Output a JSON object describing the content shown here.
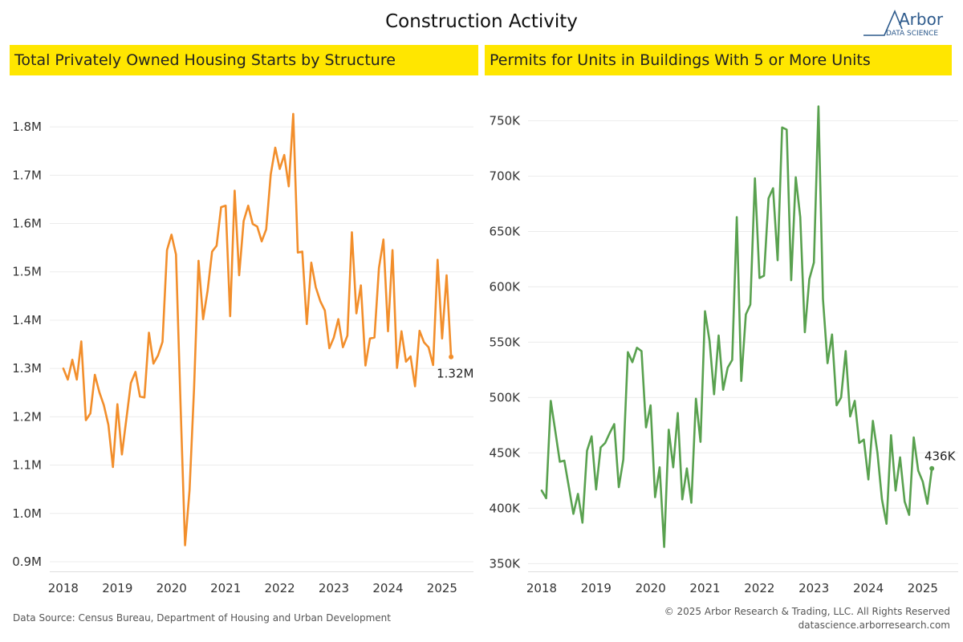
{
  "page": {
    "title": "Construction Activity",
    "source": "Data Source: Census Bureau, Department of Housing and Urban Development",
    "copyright": "© 2025 Arbor Research & Trading, LLC. All Rights Reserved",
    "website": "datascience.arborresearch.com"
  },
  "logo": {
    "name": "Arbor",
    "subtitle": "DATA SCIENCE",
    "color": "#2d5a8c"
  },
  "chart_data": [
    {
      "type": "line",
      "title": "Total Privately Owned Housing Starts by Structure",
      "xlabel": "",
      "ylabel": "",
      "color": "#f28e2b",
      "x_ticks": [
        2018,
        2019,
        2020,
        2021,
        2022,
        2023,
        2024,
        2025
      ],
      "xlim": [
        2017.75,
        2025.58
      ],
      "y_ticks": [
        900000,
        1000000,
        1100000,
        1200000,
        1300000,
        1400000,
        1500000,
        1600000,
        1700000,
        1800000
      ],
      "y_tick_labels": [
        "0.9M",
        "1.0M",
        "1.1M",
        "1.2M",
        "1.3M",
        "1.4M",
        "1.5M",
        "1.6M",
        "1.7M",
        "1.8M"
      ],
      "ylim": [
        880000,
        1870000
      ],
      "grid": "horizontal",
      "end_label": "1.32M",
      "start": "2018-01",
      "frequency": "monthly",
      "values": [
        1300000,
        1277000,
        1318000,
        1277000,
        1356000,
        1193000,
        1207000,
        1287000,
        1251000,
        1224000,
        1183000,
        1096000,
        1226000,
        1122000,
        1196000,
        1270000,
        1293000,
        1242000,
        1240000,
        1374000,
        1310000,
        1327000,
        1355000,
        1545000,
        1577000,
        1536000,
        1224000,
        934000,
        1048000,
        1258000,
        1523000,
        1402000,
        1461000,
        1542000,
        1554000,
        1634000,
        1637000,
        1408000,
        1668000,
        1493000,
        1605000,
        1637000,
        1599000,
        1594000,
        1563000,
        1588000,
        1702000,
        1757000,
        1713000,
        1742000,
        1677000,
        1827000,
        1540000,
        1542000,
        1392000,
        1519000,
        1468000,
        1439000,
        1420000,
        1342000,
        1364000,
        1402000,
        1344000,
        1368000,
        1582000,
        1414000,
        1472000,
        1306000,
        1362000,
        1364000,
        1508000,
        1567000,
        1377000,
        1545000,
        1301000,
        1377000,
        1314000,
        1325000,
        1263000,
        1378000,
        1354000,
        1344000,
        1307000,
        1525000,
        1362000,
        1493000,
        1324000
      ]
    },
    {
      "type": "line",
      "title": "Permits for Units in Buildings With 5 or More Units",
      "xlabel": "",
      "ylabel": "",
      "color": "#59a14f",
      "x_ticks": [
        2018,
        2019,
        2020,
        2021,
        2022,
        2023,
        2024,
        2025
      ],
      "xlim": [
        2017.75,
        2025.65
      ],
      "y_ticks": [
        350000,
        400000,
        450000,
        500000,
        550000,
        600000,
        650000,
        700000,
        750000
      ],
      "y_tick_labels": [
        "350K",
        "400K",
        "450K",
        "500K",
        "550K",
        "600K",
        "650K",
        "700K",
        "750K"
      ],
      "ylim": [
        343000,
        775000
      ],
      "grid": "horizontal",
      "end_label": "436K",
      "start": "2018-01",
      "frequency": "monthly",
      "values": [
        416000,
        409000,
        497000,
        470000,
        442000,
        443000,
        419000,
        395000,
        413000,
        387000,
        452000,
        465000,
        417000,
        455000,
        459000,
        468000,
        476000,
        419000,
        444000,
        541000,
        532000,
        545000,
        542000,
        473000,
        493000,
        410000,
        437000,
        365000,
        471000,
        437000,
        486000,
        408000,
        436000,
        405000,
        499000,
        460000,
        578000,
        551000,
        503000,
        556000,
        507000,
        527000,
        534000,
        663000,
        515000,
        575000,
        584000,
        698000,
        608000,
        610000,
        680000,
        689000,
        624000,
        744000,
        742000,
        606000,
        699000,
        663000,
        559000,
        607000,
        622000,
        763000,
        589000,
        531000,
        557000,
        493000,
        500000,
        542000,
        483000,
        497000,
        459000,
        462000,
        426000,
        479000,
        450000,
        408000,
        386000,
        466000,
        416000,
        446000,
        406000,
        394000,
        464000,
        434000,
        424000,
        404000,
        436000
      ]
    }
  ]
}
